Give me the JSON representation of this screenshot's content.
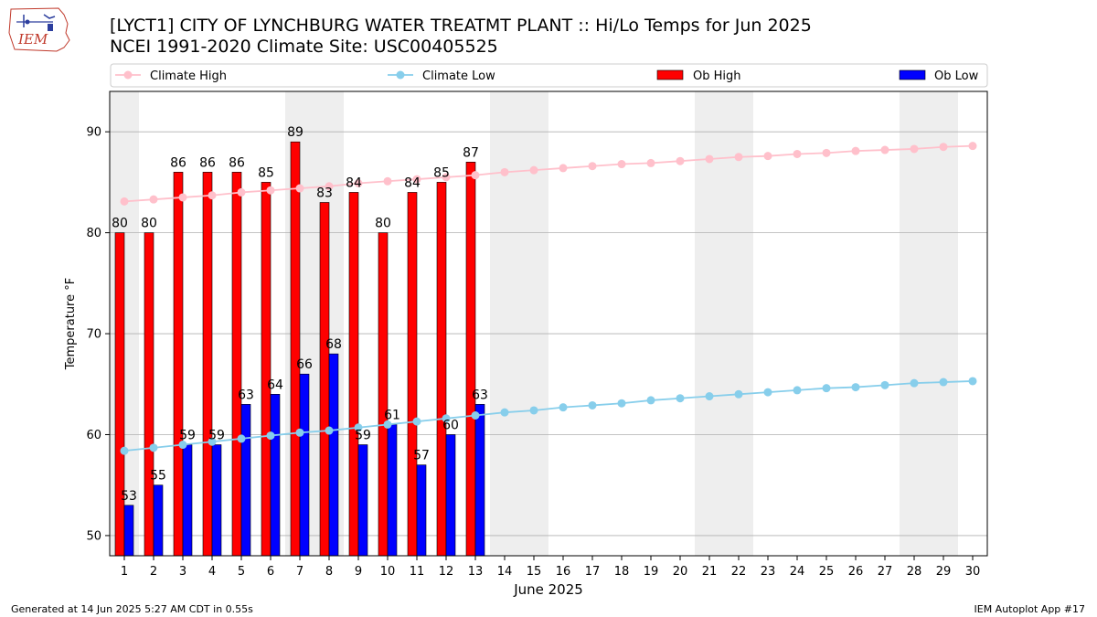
{
  "header": {
    "title_line1": "[LYCT1] CITY OF LYNCHBURG WATER TREATMT PLANT :: Hi/Lo Temps for Jun 2025",
    "title_line2": "NCEI 1991-2020 Climate Site: USC00405525",
    "logo_text": "IEM"
  },
  "footer": {
    "generated": "Generated at 14 Jun 2025 5:27 AM CDT in 0.55s",
    "app": "IEM Autoplot App #17"
  },
  "colors": {
    "ob_high": "#ff0000",
    "ob_low": "#0000ff",
    "climate_high": "#ffc0cb",
    "climate_low": "#87ceeb",
    "weekend_shade": "#eeeeee",
    "grid": "#b0b0b0"
  },
  "chart_data": {
    "type": "bar",
    "xlabel": "June 2025",
    "ylabel": "Temperature °F",
    "ylim": [
      48,
      94
    ],
    "yticks": [
      50,
      60,
      70,
      80,
      90
    ],
    "grid": "horizontal",
    "legend_placement": "top",
    "days": [
      1,
      2,
      3,
      4,
      5,
      6,
      7,
      8,
      9,
      10,
      11,
      12,
      13,
      14,
      15,
      16,
      17,
      18,
      19,
      20,
      21,
      22,
      23,
      24,
      25,
      26,
      27,
      28,
      29,
      30
    ],
    "weekend_days": [
      1,
      7,
      8,
      14,
      15,
      21,
      22,
      28,
      29
    ],
    "series": [
      {
        "name": "Climate High",
        "kind": "line",
        "values": [
          83.1,
          83.3,
          83.5,
          83.7,
          84.0,
          84.2,
          84.4,
          84.6,
          84.9,
          85.1,
          85.3,
          85.5,
          85.7,
          86.0,
          86.2,
          86.4,
          86.6,
          86.8,
          86.9,
          87.1,
          87.3,
          87.5,
          87.6,
          87.8,
          87.9,
          88.1,
          88.2,
          88.3,
          88.5,
          88.6
        ]
      },
      {
        "name": "Climate Low",
        "kind": "line",
        "values": [
          58.4,
          58.7,
          59.0,
          59.3,
          59.6,
          59.9,
          60.2,
          60.4,
          60.7,
          61.0,
          61.3,
          61.6,
          61.9,
          62.2,
          62.4,
          62.7,
          62.9,
          63.1,
          63.4,
          63.6,
          63.8,
          64.0,
          64.2,
          64.4,
          64.6,
          64.7,
          64.9,
          65.1,
          65.2,
          65.3
        ]
      },
      {
        "name": "Ob High",
        "kind": "bar",
        "values": [
          80,
          80,
          86,
          86,
          86,
          85,
          89,
          83,
          84,
          80,
          84,
          85,
          87
        ]
      },
      {
        "name": "Ob Low",
        "kind": "bar",
        "values": [
          53,
          55,
          59,
          59,
          63,
          64,
          66,
          68,
          59,
          61,
          57,
          60,
          63
        ]
      }
    ]
  }
}
